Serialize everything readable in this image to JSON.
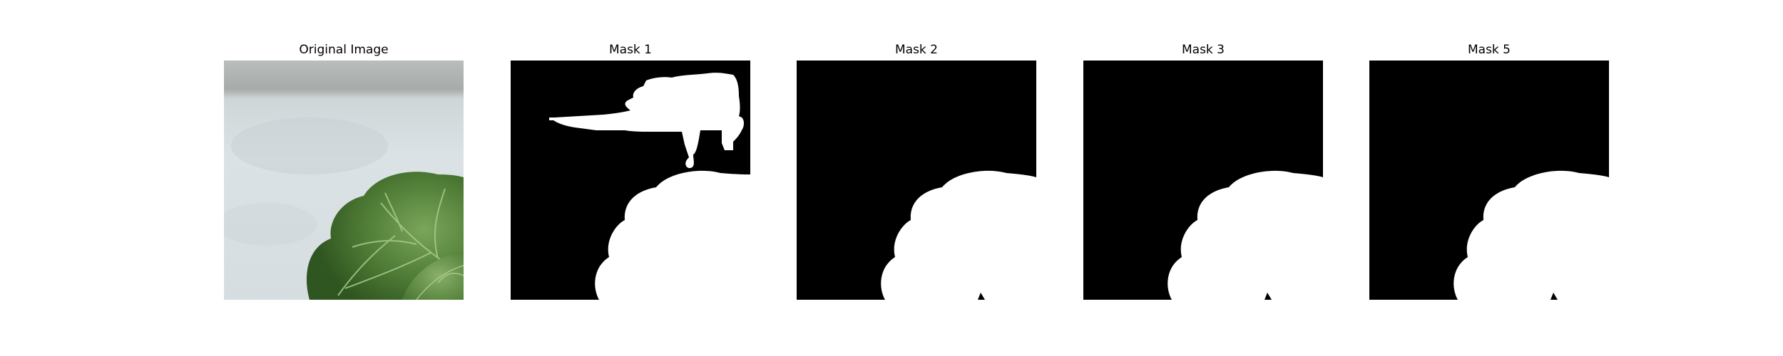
{
  "figure": {
    "panels": [
      {
        "title": "Original Image",
        "content": "photo of a green leaf against a pale grey background"
      },
      {
        "title": "Mask 1",
        "content": "binary segmentation mask"
      },
      {
        "title": "Mask 2",
        "content": "binary segmentation mask"
      },
      {
        "title": "Mask 3",
        "content": "binary segmentation mask"
      },
      {
        "title": "Mask 5",
        "content": "binary segmentation mask"
      }
    ]
  },
  "colors": {
    "background": "#ffffff",
    "mask_background": "#000000",
    "mask_foreground": "#ffffff",
    "leaf_dark": "#3f6a2a",
    "leaf_light": "#6e9a4c",
    "photo_background": "#d9dfe2"
  }
}
